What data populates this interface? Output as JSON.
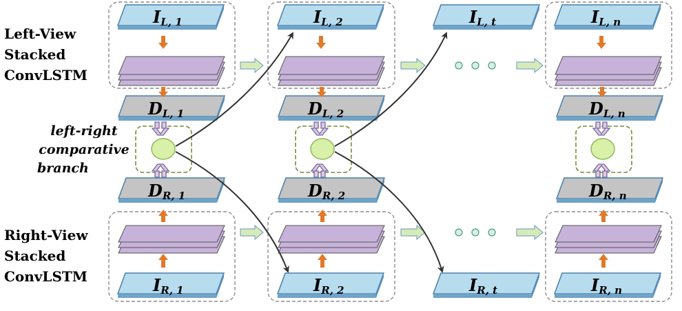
{
  "labels": {
    "left_view": [
      "Left-View",
      "Stacked",
      "ConvLSTM"
    ],
    "right_view": [
      "Right-View",
      "Stacked",
      "ConvLSTM"
    ],
    "branch": [
      "left-right",
      "comparative",
      "branch"
    ]
  },
  "columns": [
    {
      "id": "1",
      "IL": "I",
      "IL_sub": "L, 1",
      "DL": "D",
      "DL_sub": "L, 1",
      "DR": "D",
      "DR_sub": "R, 1",
      "IR": "I",
      "IR_sub": "R, 1"
    },
    {
      "id": "2",
      "IL": "I",
      "IL_sub": "L, 2",
      "DL": "D",
      "DL_sub": "L, 2",
      "DR": "D",
      "DR_sub": "R, 2",
      "IR": "I",
      "IR_sub": "R, 2"
    },
    {
      "id": "t",
      "IL": "I",
      "IL_sub": "L, t",
      "IR": "I",
      "IR_sub": "R, t"
    },
    {
      "id": "n",
      "IL": "I",
      "IL_sub": "L, n",
      "DL": "D",
      "DL_sub": "L, n",
      "DR": "D",
      "DR_sub": "R, n",
      "IR": "I",
      "IR_sub": "R, n"
    }
  ],
  "colors": {
    "input_plate": "#b7dcee",
    "input_plate_side": "#5b8fb9",
    "lstm_layer": "#c7b3d9",
    "depth_plate": "#bdbdbd",
    "orange_arrow": "#e07a2a",
    "green_arrow": "#a8cf7a",
    "node": "#d8f0a8",
    "branch_box": "#7a8a3a"
  }
}
